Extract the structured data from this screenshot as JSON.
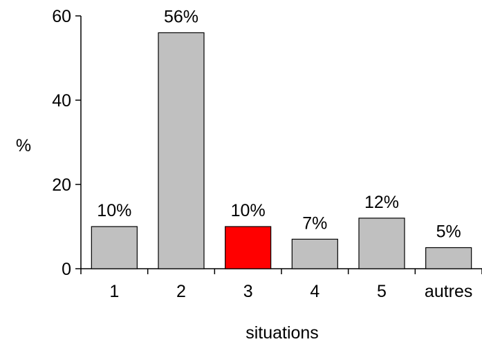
{
  "chart_data": {
    "type": "bar",
    "title": "",
    "xlabel": "situations",
    "ylabel": "%",
    "ylim": [
      0,
      60
    ],
    "yticks": [
      0,
      20,
      40,
      60
    ],
    "categories": [
      "1",
      "2",
      "3",
      "4",
      "5",
      "autres"
    ],
    "values": [
      10,
      56,
      10,
      7,
      12,
      5
    ],
    "data_labels": [
      "10%",
      "56%",
      "10%",
      "7%",
      "12%",
      "5%"
    ],
    "bar_colors": [
      "#c0c0c0",
      "#c0c0c0",
      "#ff0000",
      "#c0c0c0",
      "#c0c0c0",
      "#c0c0c0"
    ],
    "bar_edge_color": "#000000",
    "grid": false,
    "legend": "none"
  }
}
